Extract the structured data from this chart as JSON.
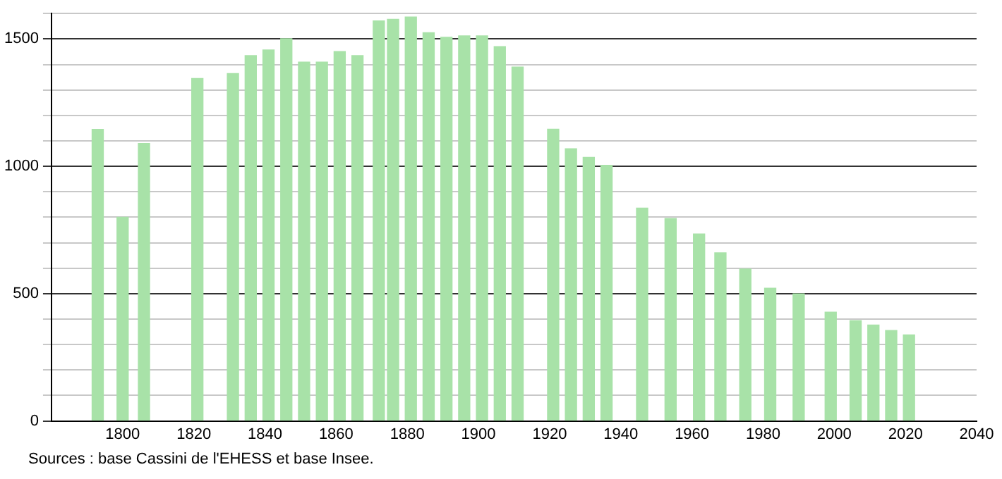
{
  "chart_data": {
    "type": "bar",
    "x": [
      1793,
      1800,
      1806,
      1821,
      1831,
      1836,
      1841,
      1846,
      1851,
      1856,
      1861,
      1866,
      1872,
      1876,
      1881,
      1886,
      1891,
      1896,
      1901,
      1906,
      1911,
      1921,
      1926,
      1931,
      1936,
      1946,
      1954,
      1962,
      1968,
      1975,
      1982,
      1990,
      1999,
      2006,
      2011,
      2016,
      2021
    ],
    "values": [
      1145,
      800,
      1090,
      1345,
      1364,
      1435,
      1457,
      1501,
      1409,
      1409,
      1451,
      1435,
      1571,
      1577,
      1586,
      1525,
      1507,
      1512,
      1512,
      1470,
      1390,
      1146,
      1069,
      1035,
      1004,
      836,
      795,
      734,
      660,
      597,
      521,
      499,
      427,
      394,
      377,
      355,
      338
    ],
    "color": "#a8e2a8",
    "xlim": [
      1780,
      2040
    ],
    "xticks": [
      1800,
      1820,
      1840,
      1860,
      1880,
      1900,
      1920,
      1940,
      1960,
      1980,
      2000,
      2020,
      2040
    ],
    "ylim": [
      0,
      1600
    ],
    "yticks": [
      0,
      {
        "value": 100,
        "label": null
      },
      {
        "value": 200,
        "label": null
      },
      {
        "value": 300,
        "label": null
      },
      {
        "value": 400,
        "label": null
      },
      500,
      {
        "value": 600,
        "label": null
      },
      {
        "value": 700,
        "label": null
      },
      {
        "value": 800,
        "label": null
      },
      {
        "value": 900,
        "label": null
      },
      1000,
      {
        "value": 1100,
        "label": null
      },
      {
        "value": 1200,
        "label": null
      },
      {
        "value": 1300,
        "label": null
      },
      {
        "value": 1400,
        "label": null
      },
      1500,
      {
        "value": 1600,
        "label": null
      }
    ],
    "grid": true,
    "legend": false,
    "annotations": [
      "Sources : base Cassini de l'EHESS et base Insee."
    ]
  }
}
